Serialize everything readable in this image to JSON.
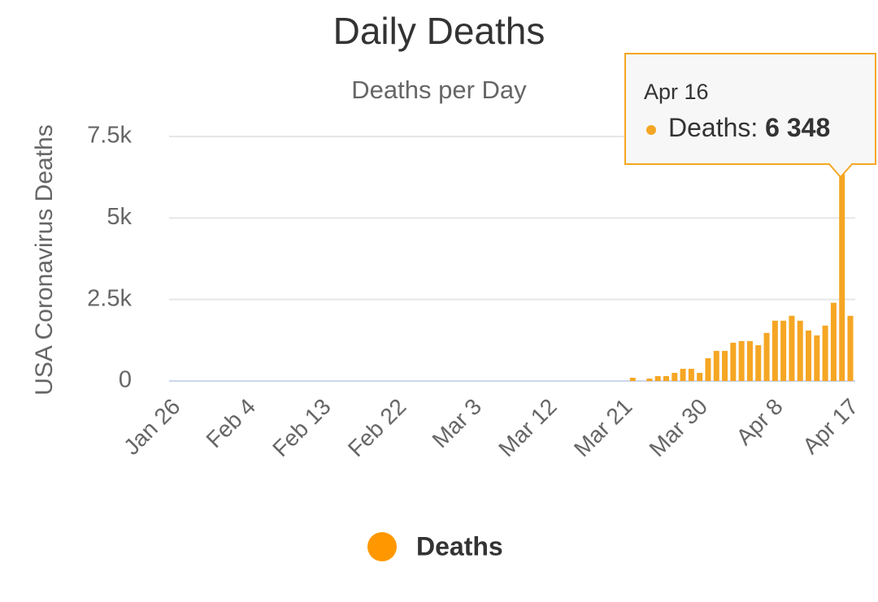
{
  "chart_data": {
    "type": "bar",
    "title": "Daily Deaths",
    "subtitle": "Deaths per Day",
    "y_label": "USA Coronavirus Deaths",
    "categories": [
      "Jan 26",
      null,
      null,
      null,
      null,
      null,
      null,
      null,
      null,
      "Feb 4",
      null,
      null,
      null,
      null,
      null,
      null,
      null,
      null,
      "Feb 13",
      null,
      null,
      null,
      null,
      null,
      null,
      null,
      null,
      "Feb 22",
      null,
      null,
      null,
      null,
      null,
      null,
      null,
      null,
      "Mar 3",
      null,
      null,
      null,
      null,
      null,
      null,
      null,
      null,
      "Mar 12",
      null,
      null,
      null,
      null,
      null,
      null,
      null,
      null,
      "Mar 21",
      null,
      null,
      null,
      null,
      null,
      null,
      null,
      null,
      "Mar 30",
      null,
      null,
      null,
      null,
      null,
      null,
      null,
      null,
      "Apr 8",
      null,
      null,
      null,
      null,
      null,
      null,
      null,
      null,
      "Apr 17"
    ],
    "series": [
      {
        "name": "Deaths",
        "color": "#f5a623",
        "legend_color": "#ff9800",
        "values": [
          0,
          0,
          0,
          0,
          0,
          0,
          0,
          0,
          0,
          0,
          0,
          0,
          0,
          0,
          0,
          0,
          0,
          0,
          0,
          0,
          0,
          0,
          0,
          0,
          0,
          0,
          0,
          0,
          0,
          0,
          0,
          0,
          0,
          0,
          0,
          0,
          0,
          0,
          0,
          0,
          0,
          0,
          0,
          0,
          0,
          0,
          0,
          0,
          0,
          0,
          0,
          0,
          0,
          0,
          0,
          100,
          0,
          75,
          150,
          150,
          250,
          375,
          375,
          250,
          700,
          925,
          925,
          1175,
          1225,
          1225,
          1100,
          1475,
          1850,
          1850,
          2000,
          1850,
          1550,
          1400,
          1700,
          2400,
          6348,
          2000
        ],
        "value_labels": [
          null,
          null,
          null,
          null,
          null,
          null,
          null,
          null,
          null,
          null,
          null,
          null,
          null,
          null,
          null,
          null,
          null,
          null,
          null,
          null,
          null,
          null,
          null,
          null,
          null,
          null,
          null,
          null,
          null,
          null,
          null,
          null,
          null,
          null,
          null,
          null,
          null,
          null,
          null,
          null,
          null,
          null,
          null,
          null,
          null,
          null,
          null,
          null,
          null,
          null,
          null,
          null,
          null,
          null,
          null,
          null,
          null,
          null,
          null,
          null,
          null,
          null,
          null,
          null,
          null,
          null,
          null,
          null,
          null,
          null,
          null,
          null,
          null,
          null,
          null,
          null,
          null,
          null,
          null,
          null,
          "6 348",
          null
        ]
      }
    ],
    "tooltip": {
      "title": "Apr 16",
      "label": "Deaths:"
    },
    "ylim": [
      0,
      7500
    ],
    "yticks": [
      0,
      {
        "value": 2500,
        "label": "2.5k"
      },
      {
        "value": 5000,
        "label": "5k"
      },
      {
        "value": 7500,
        "label": "7.5k"
      }
    ],
    "grid": true
  }
}
